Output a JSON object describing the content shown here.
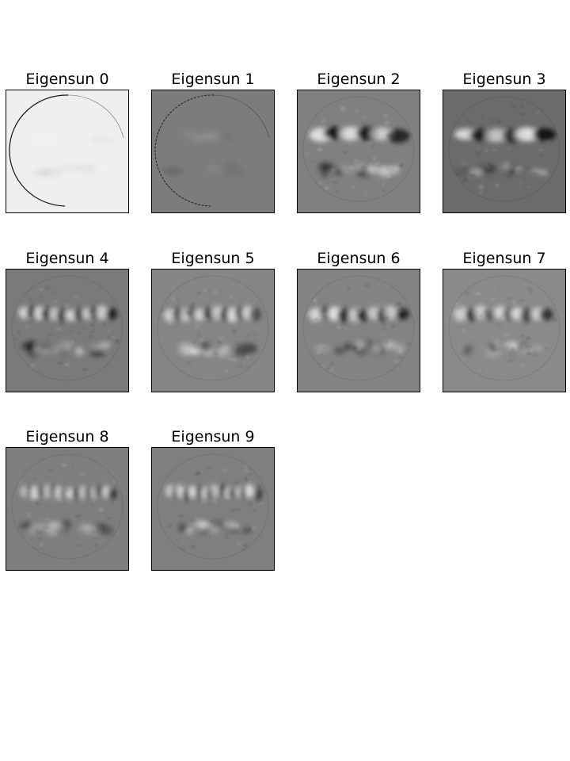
{
  "panels": [
    {
      "title": "Eigensun 0",
      "bg": "#efefef",
      "mode": "limb",
      "limb": "#111111",
      "contrast": 0.15
    },
    {
      "title": "Eigensun 1",
      "bg": "#7c7c7c",
      "mode": "limb-faint",
      "limb": "#222222",
      "contrast": 0.25
    },
    {
      "title": "Eigensun 2",
      "bg": "#808080",
      "mode": "band",
      "blobs": 3,
      "contrast": 1.0
    },
    {
      "title": "Eigensun 3",
      "bg": "#6b6b6b",
      "mode": "band",
      "blobs": 3,
      "contrast": 1.0
    },
    {
      "title": "Eigensun 4",
      "bg": "#7a7a7a",
      "mode": "band",
      "blobs": 6,
      "contrast": 1.0
    },
    {
      "title": "Eigensun 5",
      "bg": "#858585",
      "mode": "band",
      "blobs": 6,
      "contrast": 0.9
    },
    {
      "title": "Eigensun 6",
      "bg": "#838383",
      "mode": "band",
      "blobs": 5,
      "contrast": 1.0
    },
    {
      "title": "Eigensun 7",
      "bg": "#8a8a8a",
      "mode": "band",
      "blobs": 5,
      "contrast": 0.9
    },
    {
      "title": "Eigensun 8",
      "bg": "#7e7e7e",
      "mode": "band",
      "blobs": 8,
      "contrast": 0.9
    },
    {
      "title": "Eigensun 9",
      "bg": "#7f7f7f",
      "mode": "band",
      "blobs": 8,
      "contrast": 1.0
    }
  ]
}
